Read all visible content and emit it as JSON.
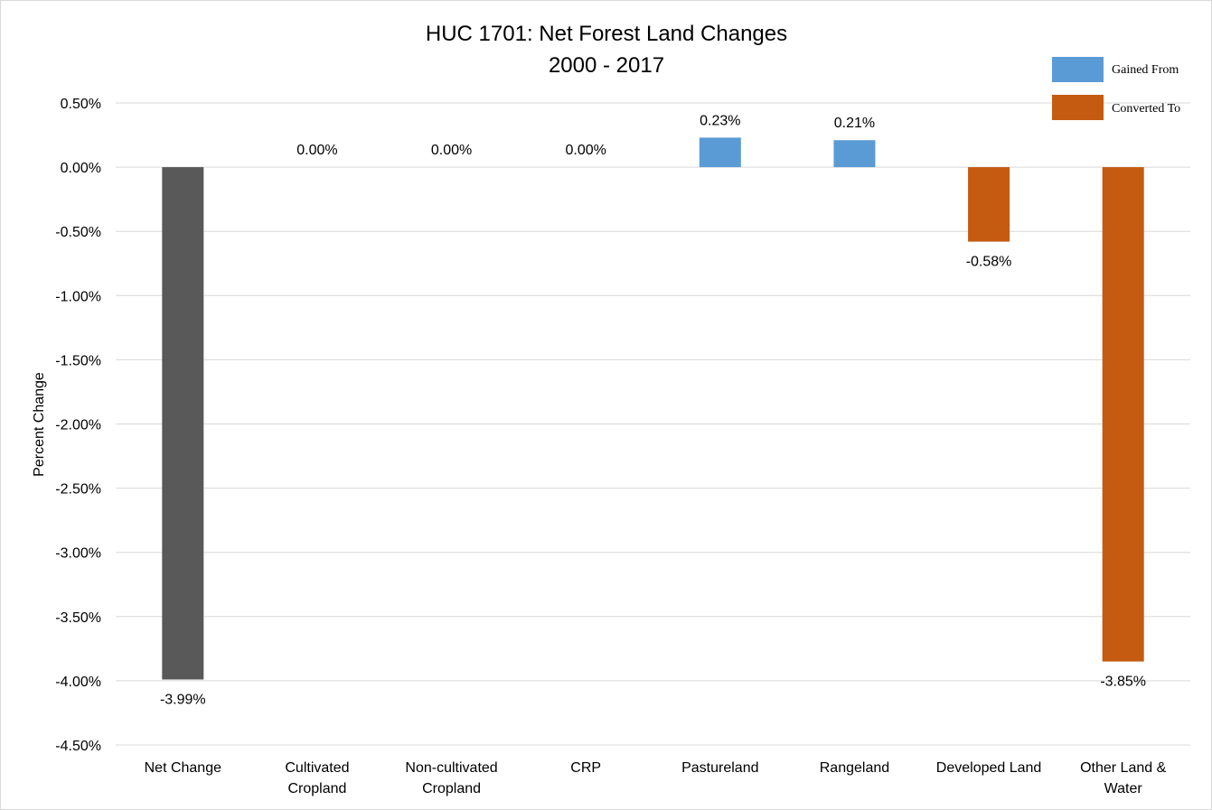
{
  "chart_data": {
    "type": "bar",
    "title": "HUC 1701: Net Forest Land Changes",
    "subtitle": "2000 - 2017",
    "ylabel": "Percent Change",
    "xlabel": "",
    "ylim": [
      -4.5,
      0.5
    ],
    "y_ticks": [
      0.5,
      0.0,
      -0.5,
      -1.0,
      -1.5,
      -2.0,
      -2.5,
      -3.0,
      -3.5,
      -4.0,
      -4.5
    ],
    "y_tick_labels": [
      "0.50%",
      "0.00%",
      "-0.50%",
      "-1.00%",
      "-1.50%",
      "-2.00%",
      "-2.50%",
      "-3.00%",
      "-3.50%",
      "-4.00%",
      "-4.50%"
    ],
    "grid": true,
    "legend_position": "top-right",
    "categories": [
      [
        "Net Change"
      ],
      [
        "Cultivated",
        "Cropland"
      ],
      [
        "Non-cultivated",
        "Cropland"
      ],
      [
        "CRP"
      ],
      [
        "Pastureland"
      ],
      [
        "Rangeland"
      ],
      [
        "Developed Land"
      ],
      [
        "Other Land &",
        "Water"
      ]
    ],
    "values": [
      -3.99,
      0.0,
      0.0,
      0.0,
      0.23,
      0.21,
      -0.58,
      -3.85
    ],
    "data_labels": [
      "-3.99%",
      "0.00%",
      "0.00%",
      "0.00%",
      "0.23%",
      "0.21%",
      "-0.58%",
      "-3.85%"
    ],
    "bar_groups": [
      "net",
      "gained",
      "gained",
      "gained",
      "gained",
      "gained",
      "converted",
      "converted"
    ],
    "series": [
      {
        "name": "Gained From",
        "color": "#5b9bd5"
      },
      {
        "name": "Converted To",
        "color": "#c55a11"
      }
    ],
    "colors": {
      "net": "#595959",
      "gained": "#5b9bd5",
      "converted": "#c55a11"
    }
  }
}
